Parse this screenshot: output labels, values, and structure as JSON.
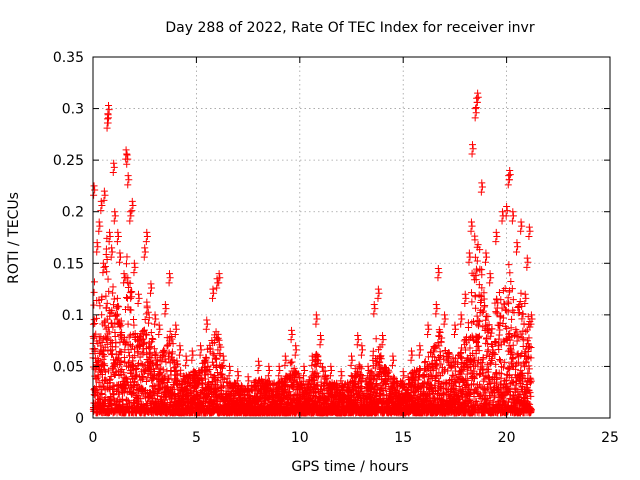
{
  "chart_data": {
    "type": "scatter",
    "title": "Day 288 of 2022, Rate Of TEC Index for receiver invr",
    "xlabel": "GPS time / hours",
    "ylabel": "ROTI / TECUs",
    "xlim": [
      0,
      25
    ],
    "ylim": [
      0,
      0.35
    ],
    "xticks": [
      "0",
      "5",
      "10",
      "15",
      "20",
      "25"
    ],
    "yticks": [
      "0",
      "0.05",
      "0.1",
      "0.15",
      "0.2",
      "0.25",
      "0.3",
      "0.35"
    ],
    "grid": true,
    "marker": "+",
    "series_color": "#ff0000",
    "series": [
      {
        "name": "ROTI",
        "points": [
          [
            0.05,
            0.225
          ],
          [
            0.2,
            0.17
          ],
          [
            0.3,
            0.19
          ],
          [
            0.4,
            0.21
          ],
          [
            0.5,
            0.15
          ],
          [
            0.55,
            0.22
          ],
          [
            0.7,
            0.29
          ],
          [
            0.72,
            0.295
          ],
          [
            0.75,
            0.303
          ],
          [
            0.8,
            0.18
          ],
          [
            0.9,
            0.165
          ],
          [
            1.0,
            0.247
          ],
          [
            1.05,
            0.2
          ],
          [
            1.2,
            0.18
          ],
          [
            1.3,
            0.16
          ],
          [
            1.5,
            0.14
          ],
          [
            1.6,
            0.26
          ],
          [
            1.65,
            0.255
          ],
          [
            1.7,
            0.235
          ],
          [
            1.8,
            0.2
          ],
          [
            1.9,
            0.21
          ],
          [
            2.0,
            0.15
          ],
          [
            2.2,
            0.12
          ],
          [
            2.5,
            0.165
          ],
          [
            2.6,
            0.18
          ],
          [
            2.8,
            0.13
          ],
          [
            3.0,
            0.1
          ],
          [
            3.2,
            0.09
          ],
          [
            3.5,
            0.11
          ],
          [
            3.7,
            0.14
          ],
          [
            4.0,
            0.09
          ],
          [
            4.2,
            0.07
          ],
          [
            4.5,
            0.06
          ],
          [
            4.8,
            0.065
          ],
          [
            5.2,
            0.07
          ],
          [
            5.5,
            0.095
          ],
          [
            5.8,
            0.125
          ],
          [
            6.0,
            0.135
          ],
          [
            6.1,
            0.14
          ],
          [
            6.3,
            0.06
          ],
          [
            6.6,
            0.05
          ],
          [
            7.0,
            0.045
          ],
          [
            7.5,
            0.04
          ],
          [
            8.0,
            0.055
          ],
          [
            8.5,
            0.05
          ],
          [
            9.0,
            0.05
          ],
          [
            9.3,
            0.06
          ],
          [
            9.6,
            0.085
          ],
          [
            9.8,
            0.07
          ],
          [
            10.2,
            0.05
          ],
          [
            10.6,
            0.06
          ],
          [
            10.8,
            0.1
          ],
          [
            11.0,
            0.08
          ],
          [
            11.5,
            0.05
          ],
          [
            12.0,
            0.045
          ],
          [
            12.5,
            0.06
          ],
          [
            12.8,
            0.08
          ],
          [
            13.0,
            0.07
          ],
          [
            13.3,
            0.05
          ],
          [
            13.6,
            0.11
          ],
          [
            13.8,
            0.125
          ],
          [
            14.0,
            0.08
          ],
          [
            14.5,
            0.06
          ],
          [
            15.0,
            0.045
          ],
          [
            15.4,
            0.065
          ],
          [
            15.8,
            0.07
          ],
          [
            16.2,
            0.09
          ],
          [
            16.6,
            0.11
          ],
          [
            16.7,
            0.145
          ],
          [
            17.0,
            0.1
          ],
          [
            17.5,
            0.09
          ],
          [
            17.8,
            0.1
          ],
          [
            18.0,
            0.12
          ],
          [
            18.2,
            0.16
          ],
          [
            18.3,
            0.19
          ],
          [
            18.35,
            0.265
          ],
          [
            18.5,
            0.3
          ],
          [
            18.55,
            0.31
          ],
          [
            18.6,
            0.315
          ],
          [
            18.8,
            0.228
          ],
          [
            19.0,
            0.16
          ],
          [
            19.2,
            0.14
          ],
          [
            19.5,
            0.18
          ],
          [
            19.8,
            0.2
          ],
          [
            20.0,
            0.205
          ],
          [
            20.1,
            0.235
          ],
          [
            20.15,
            0.24
          ],
          [
            20.3,
            0.2
          ],
          [
            20.5,
            0.17
          ],
          [
            20.7,
            0.19
          ],
          [
            20.9,
            0.12
          ],
          [
            21.0,
            0.155
          ],
          [
            21.1,
            0.185
          ],
          [
            21.2,
            0.1
          ]
        ]
      }
    ]
  }
}
